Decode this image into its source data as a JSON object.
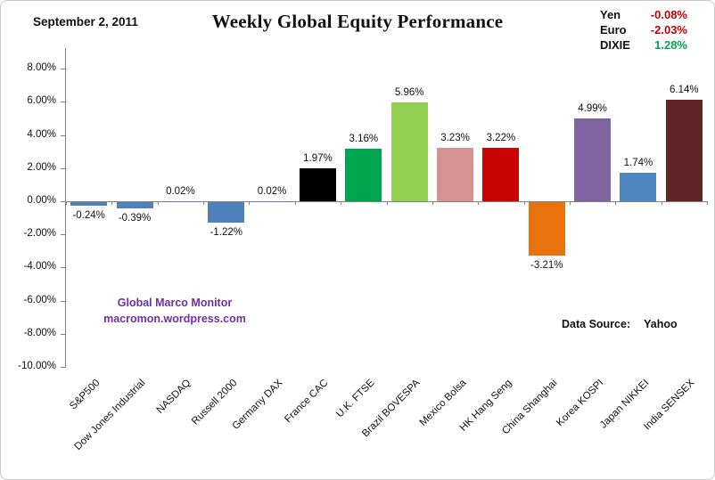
{
  "header": {
    "date_label": "September 2, 2011"
  },
  "currency_panel": {
    "rows": [
      {
        "label": "Yen",
        "value": "-0.08%",
        "color": "#C00000"
      },
      {
        "label": "Euro",
        "value": "-2.03%",
        "color": "#C00000"
      },
      {
        "label": "DIXIE",
        "value": "1.28%",
        "color": "#00A550"
      }
    ]
  },
  "watermark": {
    "line1": "Global Marco Monitor",
    "line2": "macromon.wordpress.com",
    "color": "#7030A0"
  },
  "data_source": {
    "label": "Data Source:",
    "value": "Yahoo"
  },
  "chart_data": {
    "type": "bar",
    "title": "Weekly Global Equity Performance",
    "categories": [
      "S&P500",
      "Dow Jones Industrial",
      "NASDAQ",
      "Russell 2000",
      "Germany DAX",
      "France CAC",
      "U.K. FTSE",
      "Brazil BOVESPA",
      "Mexico Bolsa",
      "HK Hang Seng",
      "China Shanghai",
      "Korea KOSPI",
      "Japan NIKKEI",
      "India SENSEX"
    ],
    "values": [
      -0.24,
      -0.39,
      0.02,
      -1.22,
      0.02,
      1.97,
      3.16,
      5.96,
      3.23,
      3.22,
      -3.21,
      4.99,
      1.74,
      6.14
    ],
    "value_labels": [
      "-0.24%",
      "-0.39%",
      "0.02%",
      "-1.22%",
      "0.02%",
      "1.97%",
      "3.16%",
      "5.96%",
      "3.23%",
      "3.22%",
      "-3.21%",
      "4.99%",
      "1.74%",
      "6.14%"
    ],
    "bar_colors": [
      "#4F81BD",
      "#4F81BD",
      "#4F81BD",
      "#4F81BD",
      "#4F81BD",
      "#000000",
      "#00A550",
      "#92D050",
      "#D49392",
      "#C90404",
      "#E8720C",
      "#8064A2",
      "#4F86C0",
      "#5F2423"
    ],
    "xlabel": "",
    "ylabel": "",
    "ylim": [
      -10,
      8
    ],
    "y_ticks": [
      8,
      6,
      4,
      2,
      0,
      -2,
      -4,
      -6,
      -8,
      -10
    ],
    "y_tick_labels": [
      "8.00%",
      "6.00%",
      "4.00%",
      "2.00%",
      "0.00%",
      "-2.00%",
      "-4.00%",
      "-6.00%",
      "-8.00%",
      "-10.00%"
    ],
    "grid": false,
    "legend": "none"
  }
}
